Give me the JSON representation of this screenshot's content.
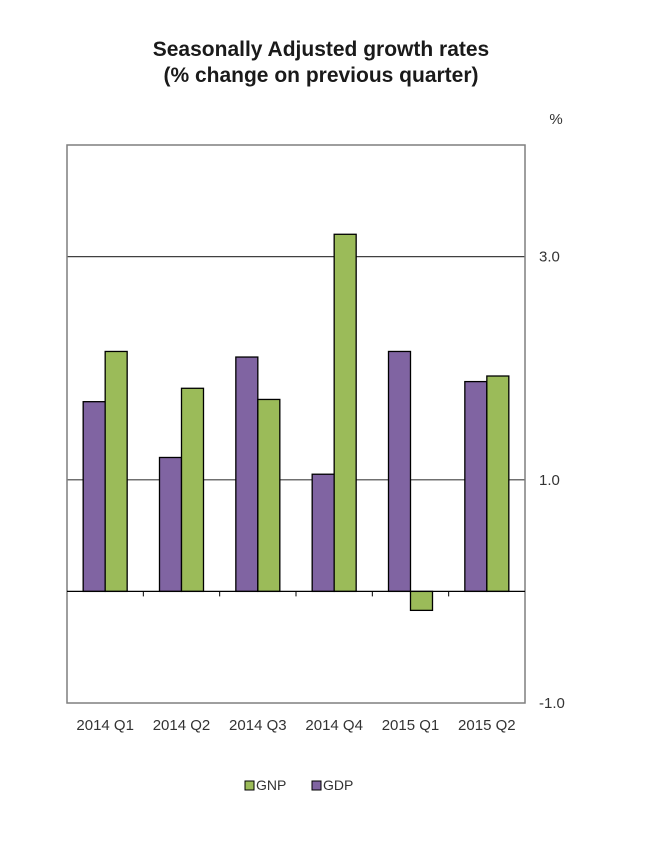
{
  "chart_data": {
    "type": "bar",
    "title": "Seasonally Adjusted growth rates",
    "subtitle": "(% change on previous quarter)",
    "ylabel": "%",
    "ylim": [
      -1.0,
      4.0
    ],
    "yticks": [
      "3.0",
      "1.0",
      "-1.0"
    ],
    "ytick_values": [
      3.0,
      1.0,
      -1.0
    ],
    "categories": [
      "2014 Q1",
      "2014 Q2",
      "2014 Q3",
      "2014 Q4",
      "2015 Q1",
      "2015 Q2"
    ],
    "series": [
      {
        "name": "GDP",
        "color": "#8064a2",
        "values": [
          1.7,
          1.2,
          2.1,
          1.05,
          2.15,
          1.88
        ]
      },
      {
        "name": "GNP",
        "color": "#9bbb59",
        "values": [
          2.15,
          1.82,
          1.72,
          3.2,
          -0.17,
          1.93
        ]
      }
    ],
    "legend_order": [
      "GNP",
      "GDP"
    ],
    "legend_position": "bottom",
    "grid": true
  }
}
